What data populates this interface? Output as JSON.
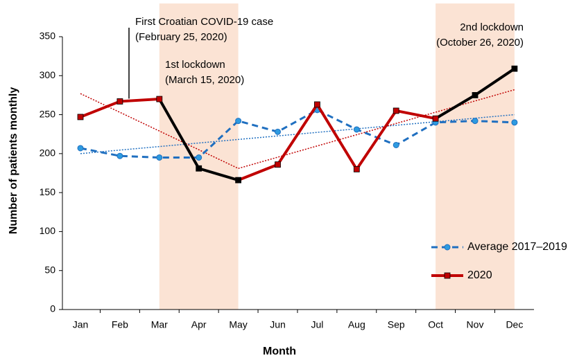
{
  "chart_data": {
    "type": "line",
    "xlabel": "Month",
    "ylabel": "Number of patients monthly",
    "categories": [
      "Jan",
      "Feb",
      "Mar",
      "Apr",
      "May",
      "Jun",
      "Jul",
      "Aug",
      "Sep",
      "Oct",
      "Nov",
      "Dec"
    ],
    "series": [
      {
        "name": "Average 2017–2019",
        "color": "#1f6fc0",
        "marker_color": "#2e9be0",
        "style": "dashed",
        "marker": "circle",
        "values": [
          207,
          197,
          195,
          195,
          242,
          228,
          256,
          231,
          211,
          240,
          242,
          240
        ],
        "trend_categories": [
          "Jan",
          "Dec"
        ],
        "trend_values": [
          200,
          250
        ]
      },
      {
        "name": "2020",
        "color": "#c00000",
        "marker_color": "#c00000",
        "style": "solid",
        "marker": "square",
        "highlight_color": "#000000",
        "values": [
          247,
          267,
          270,
          181,
          166,
          186,
          263,
          180,
          255,
          245,
          275,
          309
        ],
        "trend_categories": [
          "Jan",
          "May",
          "Dec"
        ],
        "trend_values": [
          277,
          181,
          282
        ]
      }
    ],
    "shaded_ranges": [
      {
        "from": "Mar",
        "to": "May",
        "color": "#fbe3d4"
      },
      {
        "from": "Oct",
        "to": "Dec",
        "color": "#fbe3d4"
      }
    ],
    "annotations": [
      {
        "lines": [
          "First Croatian COVID-19 case",
          "(February 25, 2020)"
        ]
      },
      {
        "lines": [
          "1st lockdown",
          "(March 15, 2020)"
        ]
      },
      {
        "lines": [
          "2nd lockdown",
          "(October 26, 2020)"
        ]
      }
    ],
    "ylim": [
      0,
      350
    ],
    "yticks": [
      0,
      50,
      100,
      150,
      200,
      250,
      300,
      350
    ],
    "legend": "lower right"
  }
}
